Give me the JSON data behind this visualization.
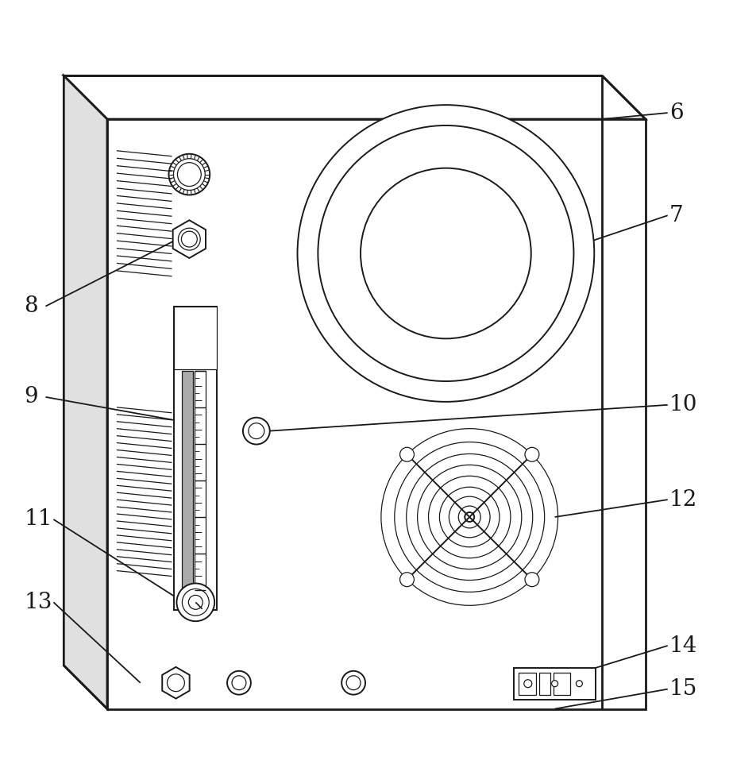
{
  "bg_color": "#ffffff",
  "line_color": "#1a1a1a",
  "lw_main": 2.0,
  "lw_detail": 1.4,
  "lw_thin": 0.9,
  "fig_width": 9.23,
  "fig_height": 9.67
}
